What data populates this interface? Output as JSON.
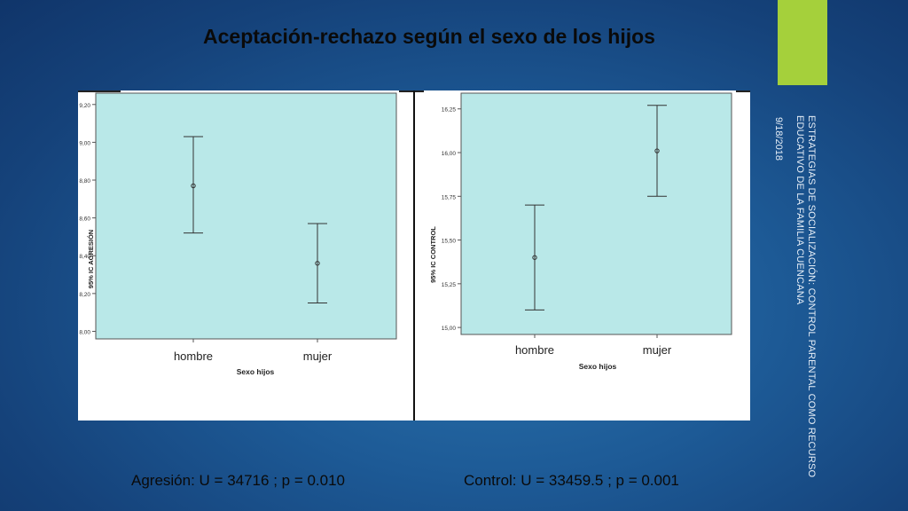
{
  "title": "Aceptación-rechazo según el sexo de los hijos",
  "side_text": "ESTRATEGIAS DE SOCIALIZACIÓN: CONTROL PARENTAL COMO RECURSO EDUCATIVO DE LA FAMILIA CUENCANA",
  "side_date": "9/18/2018",
  "stats": {
    "left": "Agresión: U = 34716 ; p = 0.010",
    "right": "Control: U = 33459.5  ; p = 0.001"
  },
  "colors": {
    "background": "#1d5a96",
    "accent": "#a5d03b",
    "plot_bg": "#b9e8e8"
  },
  "chart_data": [
    {
      "type": "errorbar",
      "categories": [
        "hombre",
        "mujer"
      ],
      "xlabel": "Sexo hijos",
      "ylabel": "95% IC AGRESIÓN",
      "ylim": [
        7.96,
        9.26
      ],
      "yticks": [
        "8,00",
        "8,20",
        "8,40",
        "8,60",
        "8,80",
        "9,00",
        "9,20"
      ],
      "ytick_values": [
        8.0,
        8.2,
        8.4,
        8.6,
        8.8,
        9.0,
        9.2
      ],
      "means": [
        8.77,
        8.36
      ],
      "lower": [
        8.52,
        8.15
      ],
      "upper": [
        9.03,
        8.57
      ]
    },
    {
      "type": "errorbar",
      "categories": [
        "hombre",
        "mujer"
      ],
      "xlabel": "Sexo hijos",
      "ylabel": "95% IC CONTROL",
      "ylim": [
        14.96,
        16.34
      ],
      "yticks": [
        "15,00",
        "15,25",
        "15,50",
        "15,75",
        "16,00",
        "16,25"
      ],
      "ytick_values": [
        15.0,
        15.25,
        15.5,
        15.75,
        16.0,
        16.25
      ],
      "means": [
        15.4,
        16.01
      ],
      "lower": [
        15.1,
        15.75
      ],
      "upper": [
        15.7,
        16.27
      ]
    }
  ]
}
